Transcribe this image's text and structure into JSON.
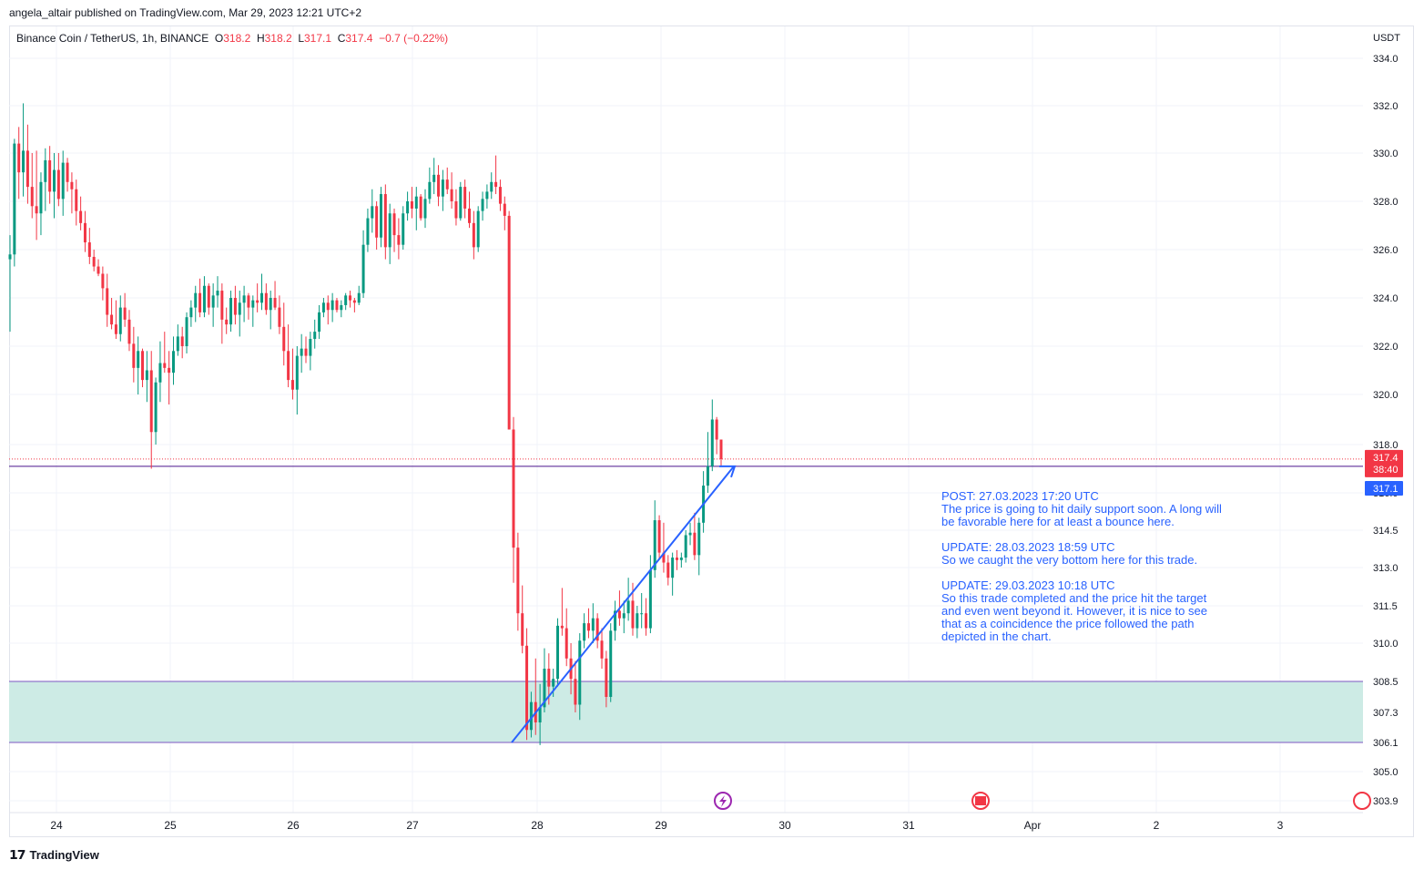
{
  "publisher": "angela_altair published on TradingView.com, Mar 29, 2023 12:21 UTC+2",
  "legend": {
    "symbol": "Binance Coin / TetherUS, 1h, BINANCE",
    "o_label": "O",
    "o_value": "318.2",
    "h_label": "H",
    "h_value": "318.2",
    "l_label": "L",
    "l_value": "317.1",
    "c_label": "C",
    "c_value": "317.4",
    "change": "−0.7 (−0.22%)"
  },
  "note": {
    "post": "POST: 27.03.2023 17:20 UTC\nThe price is going to hit daily support soon. A long will be favorable here for at least a bounce here.",
    "update1": "UPDATE: 28.03.2023 18:59 UTC\nSo we caught the very bottom here for this trade.",
    "update2": "UPDATE: 29.03.2023 10:18 UTC\nSo this trade completed and the price hit the target and even went beyond it. However, it is nice to see that as a coincidence the price followed the path depicted in the chart."
  },
  "footer": {
    "brand": "TradingView"
  },
  "colors": {
    "up": "#089981",
    "down": "#f23645",
    "arrow": "#2962ff",
    "zone_fill": "#cdebe5",
    "zone_line": "#7e57c2",
    "support_line": "#4a148c",
    "price_badge": "#f23645",
    "low_badge": "#2962ff"
  },
  "chart_data": {
    "type": "candlestick",
    "currency": "USDT",
    "y_ticks": [
      334.0,
      332.0,
      330.0,
      328.0,
      326.0,
      324.0,
      322.0,
      320.0,
      318.0,
      316.0,
      314.5,
      313.0,
      311.5,
      310.0,
      308.5,
      307.3,
      306.1,
      305.0,
      303.9
    ],
    "y_tick_labels": [
      "334.0",
      "332.0",
      "330.0",
      "328.0",
      "326.0",
      "324.0",
      "322.0",
      "320.0",
      "318.0",
      "316.0",
      "314.5",
      "313.0",
      "311.5",
      "310.0",
      "308.5",
      "307.3",
      "306.1",
      "305.0",
      "303.9"
    ],
    "x_ticks": [
      "24",
      "25",
      "26",
      "27",
      "28",
      "29",
      "30",
      "31",
      "Apr",
      "2",
      "3"
    ],
    "last_price": "317.4",
    "countdown": "38:40",
    "low_marker": "317.1",
    "support_level": 317.1,
    "demand_zone": [
      306.1,
      308.5
    ],
    "arrow_path": [
      [
        306.1,
        "28"
      ],
      [
        317.1,
        "29"
      ]
    ],
    "candles": [
      {
        "o": 325.6,
        "h": 326.6,
        "l": 322.6,
        "c": 325.8
      },
      {
        "o": 325.8,
        "h": 330.6,
        "l": 325.3,
        "c": 330.4
      },
      {
        "o": 330.4,
        "h": 331.1,
        "l": 328.1,
        "c": 329.2
      },
      {
        "o": 329.2,
        "h": 332.1,
        "l": 328.2,
        "c": 330.1
      },
      {
        "o": 330.1,
        "h": 331.2,
        "l": 327.9,
        "c": 328.6
      },
      {
        "o": 328.6,
        "h": 330.0,
        "l": 327.3,
        "c": 327.8
      },
      {
        "o": 327.8,
        "h": 330.1,
        "l": 326.4,
        "c": 327.5
      },
      {
        "o": 327.5,
        "h": 329.2,
        "l": 326.6,
        "c": 328.8
      },
      {
        "o": 328.8,
        "h": 330.2,
        "l": 327.6,
        "c": 329.7
      },
      {
        "o": 329.7,
        "h": 330.3,
        "l": 327.9,
        "c": 328.4
      },
      {
        "o": 328.4,
        "h": 330.0,
        "l": 327.3,
        "c": 329.3
      },
      {
        "o": 329.3,
        "h": 330.0,
        "l": 327.8,
        "c": 328.1
      },
      {
        "o": 328.1,
        "h": 330.1,
        "l": 327.4,
        "c": 329.6
      },
      {
        "o": 329.6,
        "h": 329.8,
        "l": 328.4,
        "c": 328.8
      },
      {
        "o": 328.8,
        "h": 329.2,
        "l": 327.5,
        "c": 328.5
      },
      {
        "o": 328.5,
        "h": 328.9,
        "l": 327.0,
        "c": 327.6
      },
      {
        "o": 327.6,
        "h": 328.2,
        "l": 326.8,
        "c": 327.1
      },
      {
        "o": 327.1,
        "h": 327.6,
        "l": 325.9,
        "c": 326.3
      },
      {
        "o": 326.3,
        "h": 326.9,
        "l": 325.4,
        "c": 325.7
      },
      {
        "o": 325.7,
        "h": 326.0,
        "l": 325.1,
        "c": 325.3
      },
      {
        "o": 325.3,
        "h": 325.6,
        "l": 324.9,
        "c": 325.0
      },
      {
        "o": 325.0,
        "h": 325.3,
        "l": 323.9,
        "c": 324.4
      },
      {
        "o": 324.4,
        "h": 325.0,
        "l": 322.8,
        "c": 323.3
      },
      {
        "o": 323.3,
        "h": 324.0,
        "l": 322.7,
        "c": 322.9
      },
      {
        "o": 322.9,
        "h": 323.9,
        "l": 322.3,
        "c": 322.5
      },
      {
        "o": 322.5,
        "h": 324.1,
        "l": 322.2,
        "c": 323.6
      },
      {
        "o": 323.6,
        "h": 324.2,
        "l": 322.8,
        "c": 323.1
      },
      {
        "o": 323.1,
        "h": 323.5,
        "l": 321.8,
        "c": 322.1
      },
      {
        "o": 322.1,
        "h": 322.8,
        "l": 320.5,
        "c": 321.1
      },
      {
        "o": 321.1,
        "h": 322.4,
        "l": 320.0,
        "c": 321.8
      },
      {
        "o": 321.8,
        "h": 321.9,
        "l": 320.3,
        "c": 320.6
      },
      {
        "o": 320.6,
        "h": 321.8,
        "l": 319.7,
        "c": 321.0
      },
      {
        "o": 321.0,
        "h": 321.8,
        "l": 317.0,
        "c": 318.5
      },
      {
        "o": 318.5,
        "h": 320.7,
        "l": 318.0,
        "c": 320.5
      },
      {
        "o": 320.5,
        "h": 322.2,
        "l": 319.7,
        "c": 321.3
      },
      {
        "o": 321.3,
        "h": 322.6,
        "l": 320.9,
        "c": 321.1
      },
      {
        "o": 321.1,
        "h": 321.8,
        "l": 319.6,
        "c": 320.9
      },
      {
        "o": 320.9,
        "h": 322.4,
        "l": 320.4,
        "c": 321.8
      },
      {
        "o": 321.8,
        "h": 322.9,
        "l": 321.6,
        "c": 322.4
      },
      {
        "o": 322.4,
        "h": 322.8,
        "l": 321.5,
        "c": 322.0
      },
      {
        "o": 322.0,
        "h": 323.4,
        "l": 321.7,
        "c": 323.2
      },
      {
        "o": 323.2,
        "h": 323.9,
        "l": 322.8,
        "c": 323.6
      },
      {
        "o": 323.6,
        "h": 324.5,
        "l": 323.0,
        "c": 324.2
      },
      {
        "o": 324.2,
        "h": 324.8,
        "l": 323.2,
        "c": 323.4
      },
      {
        "o": 323.4,
        "h": 324.9,
        "l": 323.2,
        "c": 324.5
      },
      {
        "o": 324.5,
        "h": 324.6,
        "l": 323.3,
        "c": 323.6
      },
      {
        "o": 323.6,
        "h": 324.6,
        "l": 322.8,
        "c": 324.1
      },
      {
        "o": 324.1,
        "h": 324.9,
        "l": 323.6,
        "c": 324.3
      },
      {
        "o": 324.3,
        "h": 324.6,
        "l": 322.1,
        "c": 323.1
      },
      {
        "o": 323.1,
        "h": 323.6,
        "l": 322.5,
        "c": 322.9
      },
      {
        "o": 322.9,
        "h": 324.3,
        "l": 322.6,
        "c": 324.0
      },
      {
        "o": 324.0,
        "h": 324.5,
        "l": 322.9,
        "c": 323.3
      },
      {
        "o": 323.3,
        "h": 324.3,
        "l": 322.4,
        "c": 323.8
      },
      {
        "o": 323.8,
        "h": 324.5,
        "l": 323.0,
        "c": 324.1
      },
      {
        "o": 324.1,
        "h": 324.2,
        "l": 323.1,
        "c": 323.6
      },
      {
        "o": 323.6,
        "h": 324.1,
        "l": 322.8,
        "c": 323.9
      },
      {
        "o": 323.9,
        "h": 324.6,
        "l": 323.4,
        "c": 323.8
      },
      {
        "o": 323.8,
        "h": 325.0,
        "l": 323.5,
        "c": 324.2
      },
      {
        "o": 324.2,
        "h": 324.6,
        "l": 323.3,
        "c": 323.5
      },
      {
        "o": 323.5,
        "h": 324.3,
        "l": 322.7,
        "c": 324.0
      },
      {
        "o": 324.0,
        "h": 324.7,
        "l": 323.5,
        "c": 323.6
      },
      {
        "o": 323.6,
        "h": 324.1,
        "l": 322.5,
        "c": 322.8
      },
      {
        "o": 322.8,
        "h": 323.8,
        "l": 321.2,
        "c": 321.8
      },
      {
        "o": 321.8,
        "h": 322.9,
        "l": 320.3,
        "c": 320.6
      },
      {
        "o": 320.6,
        "h": 321.9,
        "l": 319.8,
        "c": 320.2
      },
      {
        "o": 320.2,
        "h": 322.0,
        "l": 319.2,
        "c": 321.6
      },
      {
        "o": 321.6,
        "h": 322.5,
        "l": 320.9,
        "c": 321.9
      },
      {
        "o": 321.9,
        "h": 322.4,
        "l": 321.3,
        "c": 321.6
      },
      {
        "o": 321.6,
        "h": 322.6,
        "l": 321.0,
        "c": 322.3
      },
      {
        "o": 322.3,
        "h": 323.1,
        "l": 321.9,
        "c": 322.6
      },
      {
        "o": 322.6,
        "h": 323.7,
        "l": 322.3,
        "c": 323.4
      },
      {
        "o": 323.4,
        "h": 324.0,
        "l": 323.2,
        "c": 323.8
      },
      {
        "o": 323.8,
        "h": 324.1,
        "l": 322.9,
        "c": 323.5
      },
      {
        "o": 323.5,
        "h": 324.2,
        "l": 323.0,
        "c": 323.9
      },
      {
        "o": 323.9,
        "h": 324.0,
        "l": 323.4,
        "c": 323.5
      },
      {
        "o": 323.5,
        "h": 323.9,
        "l": 323.2,
        "c": 323.7
      },
      {
        "o": 323.7,
        "h": 324.2,
        "l": 323.5,
        "c": 324.1
      },
      {
        "o": 324.1,
        "h": 324.3,
        "l": 323.6,
        "c": 323.9
      },
      {
        "o": 323.9,
        "h": 324.0,
        "l": 323.4,
        "c": 323.8
      },
      {
        "o": 323.8,
        "h": 324.5,
        "l": 323.7,
        "c": 324.2
      },
      {
        "o": 324.2,
        "h": 326.8,
        "l": 324.0,
        "c": 326.2
      },
      {
        "o": 326.2,
        "h": 327.7,
        "l": 325.9,
        "c": 327.3
      },
      {
        "o": 327.3,
        "h": 328.5,
        "l": 326.7,
        "c": 327.8
      },
      {
        "o": 327.8,
        "h": 328.0,
        "l": 326.0,
        "c": 326.5
      },
      {
        "o": 326.5,
        "h": 328.6,
        "l": 326.1,
        "c": 328.3
      },
      {
        "o": 328.3,
        "h": 328.7,
        "l": 325.6,
        "c": 326.1
      },
      {
        "o": 326.1,
        "h": 327.9,
        "l": 325.4,
        "c": 327.5
      },
      {
        "o": 327.5,
        "h": 327.7,
        "l": 325.9,
        "c": 326.6
      },
      {
        "o": 326.6,
        "h": 327.3,
        "l": 325.6,
        "c": 326.2
      },
      {
        "o": 326.2,
        "h": 327.8,
        "l": 326.0,
        "c": 327.5
      },
      {
        "o": 327.5,
        "h": 328.4,
        "l": 327.2,
        "c": 328.0
      },
      {
        "o": 328.0,
        "h": 328.6,
        "l": 327.3,
        "c": 327.7
      },
      {
        "o": 327.7,
        "h": 328.6,
        "l": 326.8,
        "c": 328.2
      },
      {
        "o": 328.2,
        "h": 328.3,
        "l": 327.2,
        "c": 327.3
      },
      {
        "o": 327.3,
        "h": 328.5,
        "l": 326.9,
        "c": 328.1
      },
      {
        "o": 328.1,
        "h": 329.4,
        "l": 327.9,
        "c": 328.8
      },
      {
        "o": 328.8,
        "h": 329.8,
        "l": 328.3,
        "c": 329.1
      },
      {
        "o": 329.1,
        "h": 329.5,
        "l": 327.8,
        "c": 328.2
      },
      {
        "o": 328.2,
        "h": 329.3,
        "l": 327.6,
        "c": 328.9
      },
      {
        "o": 328.9,
        "h": 329.4,
        "l": 328.3,
        "c": 328.5
      },
      {
        "o": 328.5,
        "h": 329.2,
        "l": 327.7,
        "c": 328.0
      },
      {
        "o": 328.0,
        "h": 328.5,
        "l": 327.0,
        "c": 327.3
      },
      {
        "o": 327.3,
        "h": 328.8,
        "l": 327.2,
        "c": 328.6
      },
      {
        "o": 328.6,
        "h": 328.9,
        "l": 327.3,
        "c": 327.7
      },
      {
        "o": 327.7,
        "h": 328.4,
        "l": 326.9,
        "c": 327.1
      },
      {
        "o": 327.1,
        "h": 327.6,
        "l": 325.6,
        "c": 326.1
      },
      {
        "o": 326.1,
        "h": 327.8,
        "l": 325.9,
        "c": 327.6
      },
      {
        "o": 327.6,
        "h": 328.4,
        "l": 327.2,
        "c": 328.1
      },
      {
        "o": 328.1,
        "h": 328.7,
        "l": 327.7,
        "c": 328.4
      },
      {
        "o": 328.4,
        "h": 329.2,
        "l": 328.1,
        "c": 328.8
      },
      {
        "o": 328.8,
        "h": 329.9,
        "l": 328.3,
        "c": 328.6
      },
      {
        "o": 328.6,
        "h": 328.9,
        "l": 327.6,
        "c": 327.9
      },
      {
        "o": 327.9,
        "h": 328.2,
        "l": 326.8,
        "c": 327.4
      },
      {
        "o": 327.4,
        "h": 327.6,
        "l": 318.6,
        "c": 318.6
      },
      {
        "o": 318.6,
        "h": 319.1,
        "l": 312.4,
        "c": 313.8
      },
      {
        "o": 313.8,
        "h": 314.4,
        "l": 310.5,
        "c": 311.2
      },
      {
        "o": 311.2,
        "h": 312.3,
        "l": 309.6,
        "c": 309.9
      },
      {
        "o": 309.9,
        "h": 310.6,
        "l": 306.2,
        "c": 306.6
      },
      {
        "o": 306.6,
        "h": 308.1,
        "l": 306.3,
        "c": 307.7
      },
      {
        "o": 307.7,
        "h": 309.4,
        "l": 306.4,
        "c": 306.9
      },
      {
        "o": 306.9,
        "h": 308.4,
        "l": 306.0,
        "c": 307.5
      },
      {
        "o": 307.5,
        "h": 309.8,
        "l": 307.3,
        "c": 309.0
      },
      {
        "o": 309.0,
        "h": 309.6,
        "l": 307.6,
        "c": 308.3
      },
      {
        "o": 308.3,
        "h": 309.0,
        "l": 307.9,
        "c": 308.6
      },
      {
        "o": 308.6,
        "h": 311.0,
        "l": 308.3,
        "c": 310.7
      },
      {
        "o": 310.7,
        "h": 312.2,
        "l": 310.3,
        "c": 310.6
      },
      {
        "o": 310.6,
        "h": 311.4,
        "l": 309.1,
        "c": 309.4
      },
      {
        "o": 309.4,
        "h": 310.0,
        "l": 308.0,
        "c": 308.6
      },
      {
        "o": 308.6,
        "h": 309.3,
        "l": 307.3,
        "c": 307.6
      },
      {
        "o": 307.6,
        "h": 310.4,
        "l": 307.0,
        "c": 310.1
      },
      {
        "o": 310.1,
        "h": 311.2,
        "l": 309.8,
        "c": 310.8
      },
      {
        "o": 310.8,
        "h": 311.4,
        "l": 310.2,
        "c": 310.5
      },
      {
        "o": 310.5,
        "h": 311.6,
        "l": 310.0,
        "c": 311.0
      },
      {
        "o": 311.0,
        "h": 311.2,
        "l": 309.8,
        "c": 310.1
      },
      {
        "o": 310.1,
        "h": 310.6,
        "l": 309.0,
        "c": 309.4
      },
      {
        "o": 309.4,
        "h": 309.7,
        "l": 307.5,
        "c": 307.9
      },
      {
        "o": 307.9,
        "h": 310.8,
        "l": 307.7,
        "c": 310.5
      },
      {
        "o": 310.5,
        "h": 311.7,
        "l": 310.1,
        "c": 311.3
      },
      {
        "o": 311.3,
        "h": 312.1,
        "l": 310.7,
        "c": 311.0
      },
      {
        "o": 311.0,
        "h": 311.7,
        "l": 310.4,
        "c": 311.2
      },
      {
        "o": 311.2,
        "h": 312.6,
        "l": 310.9,
        "c": 311.7
      },
      {
        "o": 311.7,
        "h": 312.4,
        "l": 310.3,
        "c": 310.6
      },
      {
        "o": 310.6,
        "h": 311.5,
        "l": 310.2,
        "c": 311.2
      },
      {
        "o": 311.2,
        "h": 312.0,
        "l": 310.6,
        "c": 311.2
      },
      {
        "o": 311.2,
        "h": 311.8,
        "l": 310.3,
        "c": 310.6
      },
      {
        "o": 310.6,
        "h": 313.5,
        "l": 310.4,
        "c": 312.9
      },
      {
        "o": 312.9,
        "h": 315.7,
        "l": 312.6,
        "c": 314.9
      },
      {
        "o": 314.9,
        "h": 315.1,
        "l": 313.3,
        "c": 313.6
      },
      {
        "o": 313.6,
        "h": 314.8,
        "l": 312.8,
        "c": 313.2
      },
      {
        "o": 313.2,
        "h": 313.5,
        "l": 312.3,
        "c": 312.6
      },
      {
        "o": 312.6,
        "h": 313.6,
        "l": 311.9,
        "c": 313.4
      },
      {
        "o": 313.4,
        "h": 313.7,
        "l": 312.9,
        "c": 313.3
      },
      {
        "o": 313.3,
        "h": 313.6,
        "l": 313.0,
        "c": 313.4
      },
      {
        "o": 313.4,
        "h": 314.5,
        "l": 313.2,
        "c": 314.3
      },
      {
        "o": 314.3,
        "h": 314.8,
        "l": 313.9,
        "c": 314.4
      },
      {
        "o": 314.4,
        "h": 315.2,
        "l": 313.3,
        "c": 313.5
      },
      {
        "o": 313.5,
        "h": 315.0,
        "l": 312.7,
        "c": 314.8
      },
      {
        "o": 314.8,
        "h": 316.9,
        "l": 314.4,
        "c": 316.3
      },
      {
        "o": 316.3,
        "h": 318.5,
        "l": 316.0,
        "c": 317.1
      },
      {
        "o": 317.1,
        "h": 319.8,
        "l": 316.9,
        "c": 319.0
      },
      {
        "o": 319.0,
        "h": 319.1,
        "l": 317.6,
        "c": 318.2
      },
      {
        "o": 318.2,
        "h": 318.2,
        "l": 317.1,
        "c": 317.4
      }
    ]
  }
}
